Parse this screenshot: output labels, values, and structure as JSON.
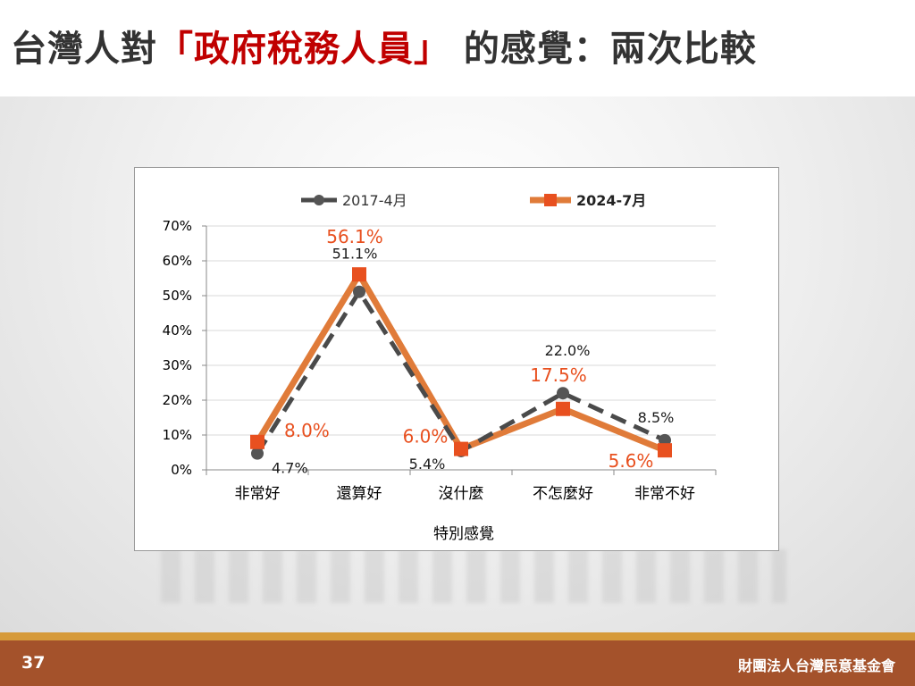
{
  "slide": {
    "title_prefix": "台灣人對",
    "title_highlight": "「政府稅務人員」",
    "title_suffix": " 的感覺：兩次比較",
    "page_number": "37",
    "organization": "財團法人台灣民意基金會"
  },
  "colors": {
    "title": "#333333",
    "title_highlight": "#c00000",
    "series_2017": "#4a4a4a",
    "series_2024_line": "#e07b39",
    "series_2024_marker": "#e8501f",
    "label_2024": "#e8501f",
    "footer": "#a4522b",
    "footer_stripe": "#d69a3a"
  },
  "chart_data": {
    "type": "line",
    "categories": [
      "非常好",
      "還算好",
      "沒什麼",
      "不怎麼好",
      "非常不好"
    ],
    "xlabel": "特別感覺",
    "ylabel": "",
    "ylim": [
      0,
      70
    ],
    "yticks": [
      "0%",
      "10%",
      "20%",
      "30%",
      "40%",
      "50%",
      "60%",
      "70%"
    ],
    "grid": true,
    "legend_position": "top",
    "series": [
      {
        "name": "2017-4月",
        "values": [
          4.7,
          51.1,
          5.4,
          22.0,
          8.5
        ],
        "labels": [
          "4.7%",
          "51.1%",
          "5.4%",
          "22.0%",
          "8.5%"
        ],
        "style": "dashed",
        "marker": "circle"
      },
      {
        "name": "2024-7月",
        "values": [
          8.0,
          56.1,
          6.0,
          17.5,
          5.6
        ],
        "labels": [
          "8.0%",
          "56.1%",
          "6.0%",
          "17.5%",
          "5.6%"
        ],
        "style": "solid",
        "marker": "square"
      }
    ]
  }
}
